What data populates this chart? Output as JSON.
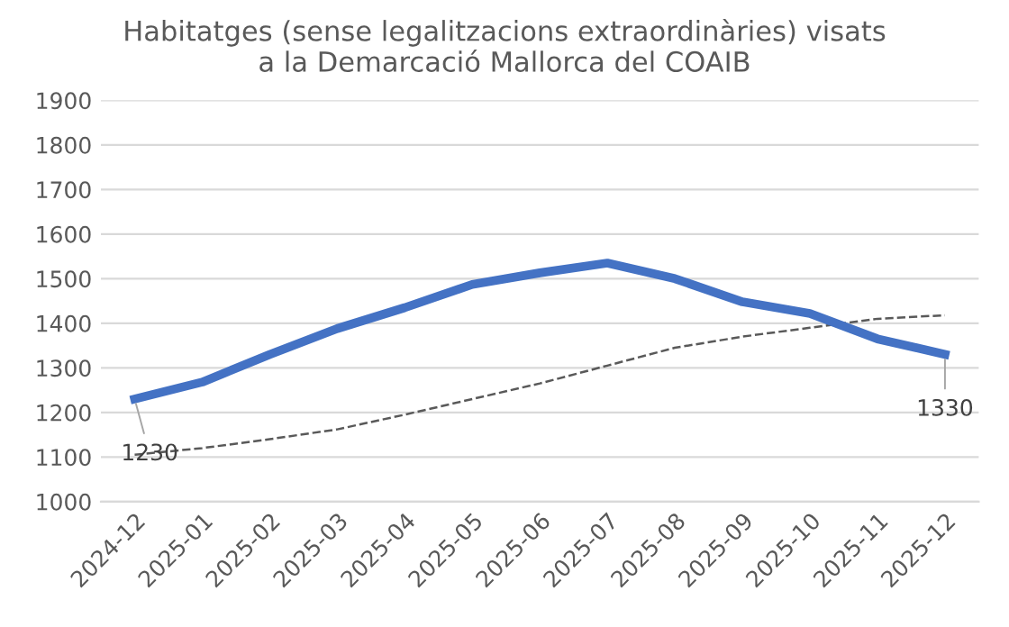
{
  "chart_data": {
    "type": "line",
    "title": "Habitatges (sense legalitzacions extraordinàries) visats\na la Demarcació Mallorca del COAIB",
    "categories": [
      "2024-12",
      "2025-01",
      "2025-02",
      "2025-03",
      "2025-04",
      "2025-05",
      "2025-06",
      "2025-07",
      "2025-08",
      "2025-09",
      "2025-10",
      "2025-11",
      "2025-12"
    ],
    "series": [
      {
        "color": "#4472c4",
        "values": [
          1230,
          1268,
          1330,
          1388,
          1435,
          1487,
          1513,
          1535,
          1500,
          1448,
          1422,
          1365,
          1330
        ],
        "value_labels": [
          "1230",
          null,
          null,
          null,
          null,
          null,
          null,
          null,
          null,
          null,
          null,
          null,
          "1330"
        ],
        "line_style": "solid"
      },
      {
        "color": "#595959",
        "values": [
          1105,
          1120,
          1140,
          1162,
          1195,
          1230,
          1265,
          1305,
          1345,
          1370,
          1390,
          1410,
          1418
        ],
        "line_style": "dashed"
      }
    ],
    "ylim": [
      1000,
      1900
    ],
    "yticks": [
      1000,
      1100,
      1200,
      1300,
      1400,
      1500,
      1600,
      1700,
      1800,
      1900
    ],
    "grid": "y",
    "legend": false
  }
}
